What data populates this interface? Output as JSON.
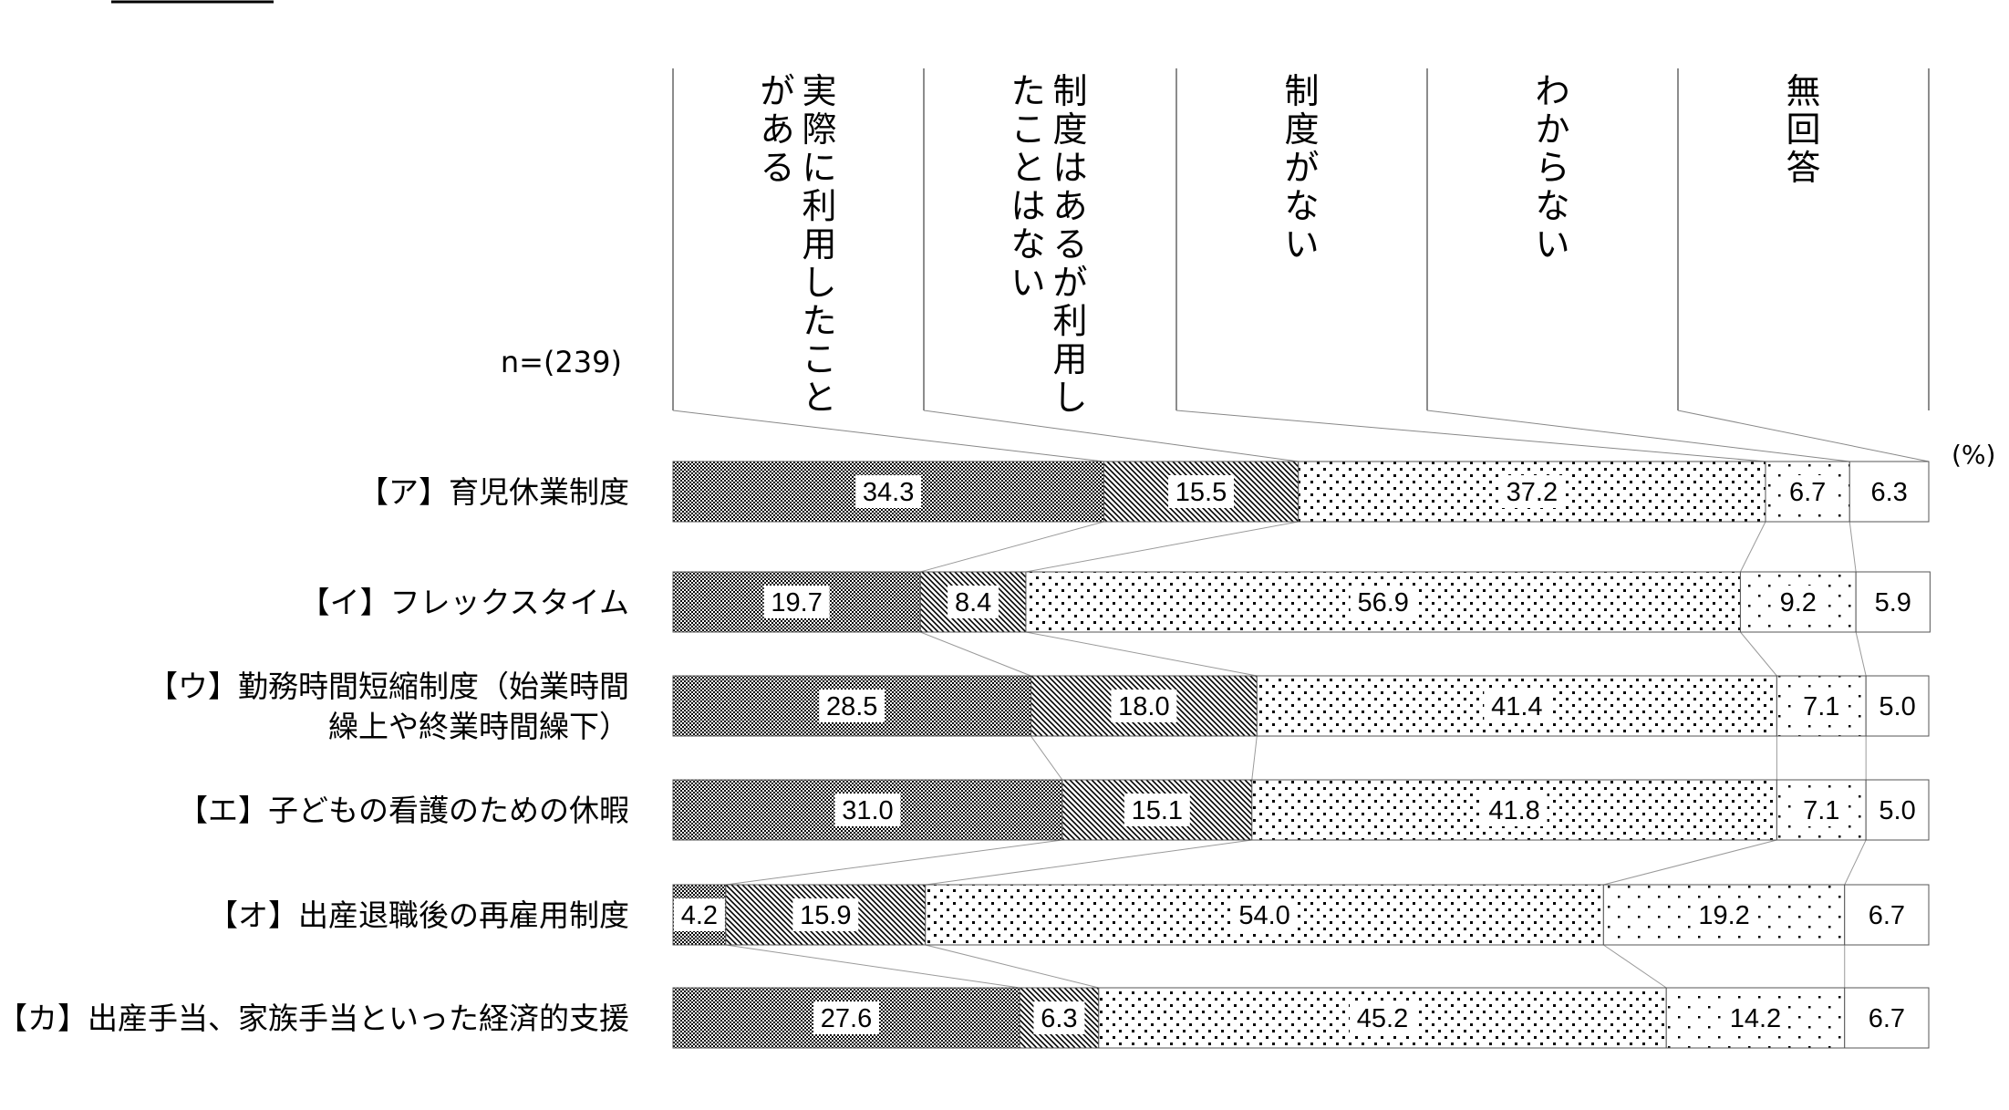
{
  "chart_data": {
    "type": "bar",
    "stacked": true,
    "orientation": "horizontal",
    "sample_size_label": "n=(239)",
    "unit_label": "(%)",
    "xlim": [
      0,
      100
    ],
    "categories": [
      "【ア】育児休業制度",
      "【イ】フレックスタイム",
      "【ウ】勤務時間短縮制度（始業時間\n繰上や終業時間繰下）",
      "【エ】子どもの看護のための休暇",
      "【オ】出産退職後の再雇用制度",
      "【カ】出産手当、家族手当といった経済的支援"
    ],
    "series": [
      {
        "name": "実際に利用したことがある",
        "pattern": "dense-checker",
        "values": [
          34.3,
          19.7,
          28.5,
          31.0,
          4.2,
          27.6
        ]
      },
      {
        "name": "制度はあるが利用したことはない",
        "pattern": "diagonal-hatch",
        "values": [
          15.5,
          8.4,
          18.0,
          15.1,
          15.9,
          6.3
        ]
      },
      {
        "name": "制度がない",
        "pattern": "medium-dots",
        "values": [
          37.2,
          56.9,
          41.4,
          41.8,
          54.0,
          45.2
        ]
      },
      {
        "name": "わからない",
        "pattern": "sparse-dots",
        "values": [
          6.7,
          9.2,
          7.1,
          7.1,
          19.2,
          14.2
        ]
      },
      {
        "name": "無回答",
        "pattern": "white",
        "values": [
          6.3,
          5.9,
          5.0,
          5.0,
          6.7,
          6.7
        ]
      }
    ],
    "value_labels": [
      [
        "34.3",
        "15.5",
        "37.2",
        "6.7",
        "6.3"
      ],
      [
        "19.7",
        "8.4",
        "56.9",
        "9.2",
        "5.9"
      ],
      [
        "28.5",
        "18.0",
        "41.4",
        "7.1",
        "5.0"
      ],
      [
        "31.0",
        "15.1",
        "41.8",
        "7.1",
        "5.0"
      ],
      [
        "4.2",
        "15.9",
        "54.0",
        "19.2",
        "6.7"
      ],
      [
        "27.6",
        "6.3",
        "45.2",
        "14.2",
        "6.7"
      ]
    ]
  }
}
